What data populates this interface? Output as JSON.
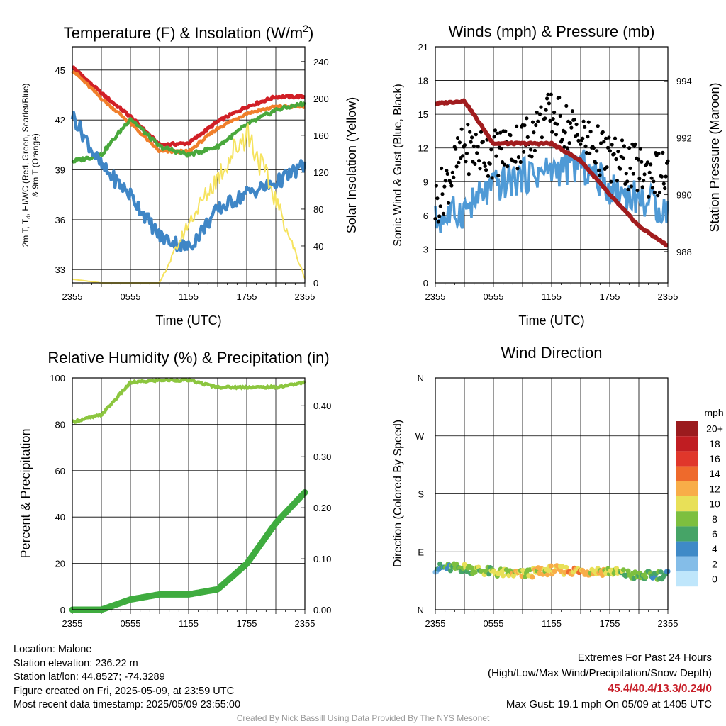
{
  "panels": {
    "temperature": {
      "title": "Temperature (F) & Insolation (W/m",
      "title_sup": "2",
      "title_close": ")",
      "ylabel_line1": "2m T, T",
      "ylabel_sub": "d",
      "ylabel_line1_rest": ", HI/WC (Red, Green, Scarlet/Blue)",
      "ylabel_line2": "& 9m T (Orange)",
      "y2label": "Solar Insolation (Yellow)",
      "xlabel": "Time (UTC)"
    },
    "winds": {
      "title": "Winds (mph) & Pressure (mb)",
      "ylabel": "Sonic Wind & Gust (Blue, Black)",
      "y2label": "Station Pressure (Maroon)",
      "xlabel": "Time (UTC)"
    },
    "humidity": {
      "title": "Relative Humidity (%) & Precipitation (in)",
      "ylabel": "Percent & Precipitation"
    },
    "direction": {
      "title": "Wind Direction",
      "ylabel": "Direction (Colored By Speed)",
      "legend_title": "mph"
    }
  },
  "chart_data": [
    {
      "type": "line",
      "name": "temperature-insolation",
      "x_ticks": [
        "2355",
        "0555",
        "1155",
        "1755",
        "2355"
      ],
      "y_ticks": [
        33,
        36,
        39,
        42,
        45
      ],
      "ylim": [
        32.2,
        46.4
      ],
      "y2_ticks": [
        0,
        40,
        80,
        120,
        160,
        200,
        240
      ],
      "y2lim": [
        0,
        256
      ],
      "x_hours": [
        0,
        3,
        6,
        9,
        12,
        15,
        18,
        21,
        24
      ],
      "series": [
        {
          "color": "#d11f26",
          "axis": "left",
          "values": [
            45.2,
            43.6,
            42.2,
            40.5,
            40.6,
            41.9,
            42.8,
            43.4,
            43.4
          ]
        },
        {
          "color": "#f07f2b",
          "axis": "left",
          "values": [
            45.0,
            43.3,
            41.8,
            40.1,
            40.1,
            41.5,
            42.4,
            42.8,
            42.8
          ]
        },
        {
          "color": "#49a83c",
          "axis": "left",
          "values": [
            39.5,
            39.9,
            42.1,
            40.4,
            39.9,
            40.4,
            41.7,
            42.6,
            43.0
          ]
        },
        {
          "color": "#3f86c6",
          "axis": "left",
          "values": [
            42.3,
            39.2,
            37.5,
            35.0,
            34.3,
            36.6,
            37.6,
            38.2,
            39.3
          ]
        },
        {
          "color": "#f6e35f",
          "axis": "right",
          "values": [
            4,
            0,
            0,
            0,
            65,
            115,
            165,
            90,
            5
          ]
        }
      ]
    },
    {
      "type": "scatter",
      "name": "winds-pressure",
      "x_ticks": [
        "2355",
        "0555",
        "1155",
        "1755",
        "2355"
      ],
      "y_ticks": [
        0,
        3,
        6,
        9,
        12,
        15,
        18,
        21
      ],
      "ylim": [
        0,
        21
      ],
      "y2_ticks": [
        988,
        990,
        992,
        994
      ],
      "y2lim": [
        986.9,
        995.2
      ],
      "x_hours": [
        0,
        3,
        6,
        9,
        12,
        15,
        18,
        21,
        24
      ],
      "series": [
        {
          "color": "#4f9ad6",
          "axis": "left",
          "values": [
            5.5,
            6.5,
            8.5,
            9.5,
            10.0,
            10.5,
            8.5,
            7.5,
            6.5
          ]
        },
        {
          "color": "#000000",
          "axis": "left",
          "values": [
            7.0,
            12.0,
            11.5,
            12.5,
            15.0,
            13.0,
            11.0,
            10.0,
            9.5
          ]
        },
        {
          "color": "#a11c1e",
          "axis": "right",
          "values": [
            993.2,
            993.3,
            991.8,
            991.8,
            991.8,
            991.2,
            990.0,
            988.9,
            988.2
          ]
        }
      ]
    },
    {
      "type": "line",
      "name": "humidity-precipitation",
      "x_ticks": [
        "2355",
        "0555",
        "1155",
        "1755",
        "2355"
      ],
      "y_ticks": [
        0,
        20,
        40,
        60,
        80,
        100
      ],
      "ylim": [
        0,
        100
      ],
      "y2_ticks": [
        "0.00",
        "0.10",
        "0.20",
        "0.30",
        "0.40"
      ],
      "y2lim": [
        0,
        0.4545
      ],
      "x_hours": [
        0,
        3,
        6,
        9,
        12,
        15,
        18,
        21,
        24
      ],
      "series": [
        {
          "color": "#8cc63f",
          "axis": "left",
          "values": [
            81,
            84,
            98,
            99,
            99,
            96,
            96,
            96,
            98
          ]
        },
        {
          "color": "#3fac3f",
          "axis": "right",
          "values": [
            0.0,
            0.0,
            0.02,
            0.03,
            0.03,
            0.04,
            0.09,
            0.17,
            0.23
          ]
        }
      ]
    },
    {
      "type": "scatter",
      "name": "wind-direction",
      "x_ticks": [
        "2355",
        "0555",
        "1155",
        "1755",
        "2355"
      ],
      "y_ticks": [
        "N",
        "E",
        "S",
        "W",
        "N"
      ],
      "ylim": [
        0,
        360
      ],
      "x_hours": [
        0,
        3,
        6,
        9,
        12,
        15,
        18,
        21,
        24
      ],
      "direction_deg": [
        65,
        65,
        58,
        55,
        62,
        60,
        60,
        52,
        55
      ],
      "speed_mph": [
        4,
        8,
        9,
        10,
        11,
        12,
        9,
        7,
        6
      ],
      "legend_labels": [
        "0",
        "2",
        "4",
        "6",
        "8",
        "10",
        "12",
        "14",
        "16",
        "18",
        "20+"
      ],
      "legend_colors": [
        "#bfe6fb",
        "#84bde8",
        "#3f8ac7",
        "#46a467",
        "#7dbf3f",
        "#e8e058",
        "#f8ad48",
        "#ee6a2c",
        "#e0372b",
        "#c01d22",
        "#9b1b1e"
      ]
    }
  ],
  "info": {
    "location": "Location: Malone",
    "elevation": "Station elevation: 236.22 m",
    "latlon": "Station lat/lon: 44.8527; -74.3289",
    "created": "Figure created on Fri, 2025-05-09, at 23:59 UTC",
    "recent": "Most recent data timestamp: 2025/05/09 23:55:00"
  },
  "extremes": {
    "heading": "Extremes For Past 24 Hours",
    "subheading": "(High/Low/Max Wind/Precipitation/Snow Depth)",
    "values": "45.4/40.4/13.3/0.24/0",
    "max_gust": "Max Gust: 19.1 mph On 05/09 at 1405 UTC"
  },
  "credit": "Created By Nick Bassill Using Data Provided By The NYS Mesonet"
}
